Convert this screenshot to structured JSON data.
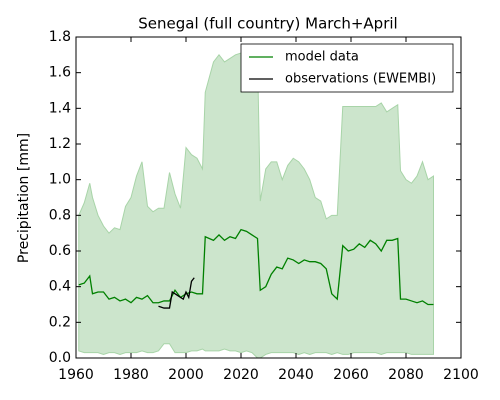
{
  "chart_data": {
    "type": "line",
    "title": "Senegal (full country) March+April",
    "y_label": "Precipitation [mm]",
    "x": [
      1961,
      1963,
      1965,
      1966,
      1968,
      1970,
      1972,
      1974,
      1976,
      1978,
      1980,
      1982,
      1984,
      1986,
      1988,
      1990,
      1992,
      1994,
      1996,
      1998,
      2000,
      2002,
      2004,
      2006,
      2007,
      2010,
      2012,
      2014,
      2016,
      2018,
      2020,
      2022,
      2024,
      2026,
      2027,
      2029,
      2031,
      2033,
      2035,
      2037,
      2039,
      2041,
      2043,
      2045,
      2047,
      2049,
      2051,
      2053,
      2055,
      2057,
      2059,
      2061,
      2063,
      2065,
      2067,
      2069,
      2071,
      2073,
      2075,
      2077,
      2078,
      2080,
      2082,
      2084,
      2086,
      2088,
      2090
    ],
    "band": {
      "color": "#cce5cc",
      "upper": [
        0.8,
        0.87,
        0.98,
        0.9,
        0.8,
        0.74,
        0.7,
        0.73,
        0.72,
        0.85,
        0.9,
        1.02,
        1.1,
        0.85,
        0.82,
        0.84,
        0.84,
        1.04,
        0.92,
        0.84,
        1.18,
        1.14,
        1.12,
        1.06,
        1.49,
        1.66,
        1.7,
        1.66,
        1.68,
        1.7,
        1.71,
        1.68,
        1.72,
        1.7,
        0.88,
        1.06,
        1.1,
        1.1,
        1.0,
        1.08,
        1.12,
        1.1,
        1.06,
        1.0,
        0.9,
        0.88,
        0.78,
        0.8,
        0.8,
        1.41,
        1.41,
        1.41,
        1.41,
        1.41,
        1.41,
        1.41,
        1.43,
        1.38,
        1.4,
        1.42,
        1.05,
        1.0,
        0.98,
        1.02,
        1.1,
        1.0,
        1.02
      ],
      "lower": [
        0.04,
        0.03,
        0.03,
        0.03,
        0.03,
        0.02,
        0.03,
        0.03,
        0.02,
        0.03,
        0.03,
        0.03,
        0.04,
        0.03,
        0.03,
        0.04,
        0.08,
        0.08,
        0.03,
        0.03,
        0.03,
        0.04,
        0.04,
        0.05,
        0.04,
        0.04,
        0.04,
        0.05,
        0.04,
        0.04,
        0.03,
        0.04,
        0.03,
        0.0,
        0.0,
        0.02,
        0.03,
        0.03,
        0.03,
        0.03,
        0.03,
        0.02,
        0.03,
        0.02,
        0.03,
        0.03,
        0.03,
        0.02,
        0.03,
        0.02,
        0.02,
        0.03,
        0.03,
        0.03,
        0.03,
        0.03,
        0.02,
        0.03,
        0.03,
        0.03,
        0.03,
        0.03,
        0.02,
        0.02,
        0.02,
        0.02,
        0.02
      ]
    },
    "series": [
      {
        "name": "model data",
        "color": "#008000",
        "values": [
          0.41,
          0.42,
          0.46,
          0.36,
          0.37,
          0.37,
          0.33,
          0.34,
          0.32,
          0.33,
          0.31,
          0.34,
          0.33,
          0.35,
          0.31,
          0.31,
          0.32,
          0.32,
          0.38,
          0.34,
          0.36,
          0.37,
          0.36,
          0.36,
          0.68,
          0.66,
          0.69,
          0.66,
          0.68,
          0.67,
          0.72,
          0.71,
          0.69,
          0.67,
          0.38,
          0.4,
          0.47,
          0.51,
          0.5,
          0.56,
          0.55,
          0.53,
          0.55,
          0.54,
          0.54,
          0.53,
          0.5,
          0.36,
          0.33,
          0.63,
          0.6,
          0.61,
          0.64,
          0.62,
          0.66,
          0.64,
          0.6,
          0.66,
          0.66,
          0.67,
          0.33,
          0.33,
          0.32,
          0.31,
          0.32,
          0.3,
          0.3
        ]
      },
      {
        "name": "observations (EWEMBI)",
        "color": "#000000",
        "x": [
          1990,
          1992,
          1994,
          1995,
          1997,
          1999,
          2000,
          2001,
          2002,
          2003
        ],
        "values": [
          0.29,
          0.28,
          0.28,
          0.37,
          0.35,
          0.33,
          0.37,
          0.34,
          0.43,
          0.45
        ]
      }
    ],
    "xlim": [
      1960,
      2100
    ],
    "xticks": [
      1960,
      1980,
      2000,
      2020,
      2040,
      2060,
      2080,
      2100
    ],
    "ylim": [
      0,
      1.8
    ],
    "yticks": [
      {
        "value": 0,
        "label": "0.0"
      },
      {
        "value": 0.2,
        "label": "0.2"
      },
      {
        "value": 0.4,
        "label": "0.4"
      },
      {
        "value": 0.6,
        "label": "0.6"
      },
      {
        "value": 0.8,
        "label": "0.8"
      },
      {
        "value": 1,
        "label": "1.0"
      },
      {
        "value": 1.2,
        "label": "1.2"
      },
      {
        "value": 1.4,
        "label": "1.4"
      },
      {
        "value": 1.6,
        "label": "1.6"
      },
      {
        "value": 1.8,
        "label": "1.8"
      }
    ],
    "legend": "upper right"
  }
}
